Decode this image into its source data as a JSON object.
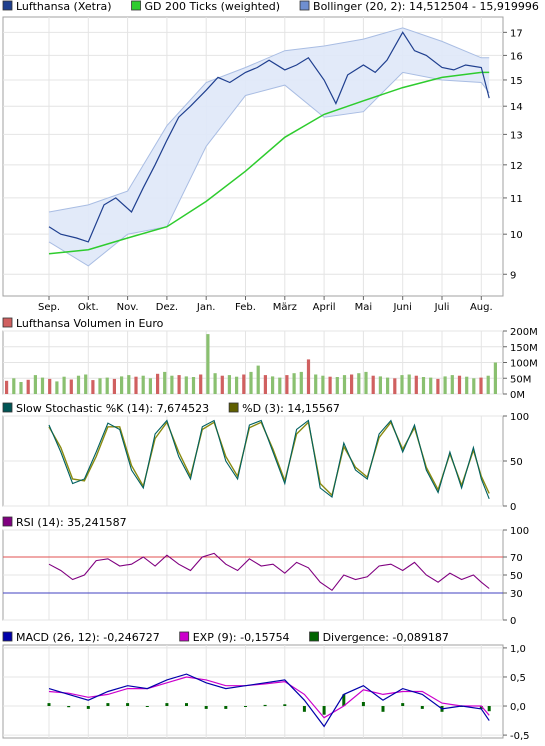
{
  "chart_data": [
    {
      "type": "line",
      "panel": "price",
      "legend": [
        {
          "label": "Lufthansa (Xetra)",
          "color": "#1f3f8f"
        },
        {
          "label": "GD 200 Ticks (weighted)",
          "color": "#2ecc2e"
        },
        {
          "label": "Bollinger (20, 2): 14,512504 - 15,919996",
          "color": "#6f8fd0"
        }
      ],
      "x_months": [
        "Sep.",
        "Okt.",
        "Nov.",
        "Dez.",
        "Jan.",
        "Feb.",
        "März",
        "April",
        "Mai",
        "Juni",
        "Juli",
        "Aug."
      ],
      "y_ticks": [
        "17",
        "16",
        "15",
        "14",
        "13",
        "12",
        "11",
        "10",
        "9"
      ],
      "y_tick_values": [
        17,
        16,
        15,
        14,
        13,
        12,
        11,
        10,
        9
      ],
      "ylim": [
        8.5,
        17.7
      ],
      "log_scale": true,
      "grid": true,
      "series": [
        {
          "name": "Lufthansa (Xetra)",
          "x": [
            0,
            0.3,
            0.7,
            1.0,
            1.4,
            1.7,
            2.1,
            2.4,
            2.7,
            3.0,
            3.3,
            3.6,
            4.0,
            4.3,
            4.6,
            5.0,
            5.3,
            5.6,
            6.0,
            6.3,
            6.6,
            7.0,
            7.3,
            7.6,
            8.0,
            8.3,
            8.6,
            9.0,
            9.3,
            9.6,
            10.0,
            10.3,
            10.6,
            11.0,
            11.2
          ],
          "values": [
            10.2,
            10.0,
            9.9,
            9.8,
            10.8,
            11.0,
            10.6,
            11.3,
            12.0,
            12.8,
            13.6,
            14.0,
            14.6,
            15.1,
            14.9,
            15.3,
            15.5,
            15.8,
            15.4,
            15.6,
            15.9,
            15.0,
            14.1,
            15.2,
            15.6,
            15.3,
            15.8,
            17.0,
            16.2,
            16.0,
            15.5,
            15.4,
            15.6,
            15.5,
            14.3
          ]
        },
        {
          "name": "GD 200 Ticks (weighted)",
          "x": [
            0,
            1,
            2,
            3,
            4,
            5,
            6,
            7,
            8,
            9,
            10,
            11,
            11.2
          ],
          "values": [
            9.5,
            9.6,
            9.9,
            10.2,
            10.9,
            11.8,
            12.9,
            13.7,
            14.2,
            14.7,
            15.1,
            15.3,
            15.3
          ]
        },
        {
          "name": "Bollinger upper",
          "x": [
            0,
            1,
            2,
            3,
            4,
            5,
            6,
            7,
            8,
            9,
            10,
            11,
            11.2
          ],
          "values": [
            10.6,
            10.8,
            11.2,
            13.3,
            14.9,
            15.5,
            16.2,
            16.4,
            16.7,
            17.2,
            16.6,
            15.9,
            15.9
          ]
        },
        {
          "name": "Bollinger lower",
          "x": [
            0,
            1,
            2,
            3,
            4,
            5,
            6,
            7,
            8,
            9,
            10,
            11,
            11.2
          ],
          "values": [
            9.8,
            9.2,
            10.0,
            10.2,
            12.6,
            14.4,
            14.8,
            13.6,
            13.8,
            15.3,
            15.0,
            14.9,
            14.5
          ]
        }
      ]
    },
    {
      "type": "bar",
      "panel": "volume",
      "legend": [
        {
          "label": "Lufthansa Volumen in Euro",
          "color": "#d06060"
        }
      ],
      "y_ticks": [
        "200M",
        "150M",
        "100M",
        "50M",
        "0M"
      ],
      "y_tick_values": [
        200,
        150,
        100,
        50,
        0
      ],
      "ylim": [
        0,
        200
      ],
      "values": [
        42,
        50,
        38,
        45,
        60,
        52,
        48,
        40,
        55,
        46,
        58,
        62,
        44,
        50,
        52,
        48,
        56,
        60,
        55,
        58,
        50,
        64,
        70,
        58,
        60,
        56,
        54,
        62,
        190,
        66,
        58,
        60,
        55,
        62,
        70,
        90,
        60,
        56,
        52,
        60,
        66,
        70,
        110,
        62,
        58,
        55,
        54,
        60,
        62,
        66,
        70,
        58,
        56,
        52,
        50,
        60,
        62,
        58,
        54,
        52,
        48,
        56,
        60,
        58,
        55,
        50,
        52,
        58,
        100
      ]
    },
    {
      "type": "line",
      "panel": "stochastic",
      "legend": [
        {
          "label": "Slow Stochastic %K (14): 7,674523",
          "color": "#005555"
        },
        {
          "label": "%D (3): 14,15567",
          "color": "#606000"
        }
      ],
      "y_ticks": [
        "100",
        "50",
        "0"
      ],
      "y_tick_values": [
        100,
        50,
        0
      ],
      "ylim": [
        0,
        100
      ],
      "series": [
        {
          "name": "%K",
          "x": [
            0,
            0.3,
            0.6,
            0.9,
            1.2,
            1.5,
            1.8,
            2.1,
            2.4,
            2.7,
            3.0,
            3.3,
            3.6,
            3.9,
            4.2,
            4.5,
            4.8,
            5.1,
            5.4,
            5.7,
            6.0,
            6.3,
            6.6,
            6.9,
            7.2,
            7.5,
            7.8,
            8.1,
            8.4,
            8.7,
            9.0,
            9.3,
            9.6,
            9.9,
            10.2,
            10.5,
            10.8,
            11.0,
            11.2
          ],
          "values": [
            90,
            60,
            25,
            30,
            60,
            92,
            85,
            40,
            20,
            80,
            95,
            55,
            30,
            88,
            95,
            50,
            30,
            90,
            95,
            60,
            25,
            85,
            95,
            20,
            10,
            70,
            40,
            30,
            80,
            95,
            60,
            90,
            40,
            15,
            60,
            20,
            65,
            30,
            8
          ]
        },
        {
          "name": "%D",
          "x": [
            0,
            0.3,
            0.6,
            0.9,
            1.2,
            1.5,
            1.8,
            2.1,
            2.4,
            2.7,
            3.0,
            3.3,
            3.6,
            3.9,
            4.2,
            4.5,
            4.8,
            5.1,
            5.4,
            5.7,
            6.0,
            6.3,
            6.6,
            6.9,
            7.2,
            7.5,
            7.8,
            8.1,
            8.4,
            8.7,
            9.0,
            9.3,
            9.6,
            9.9,
            10.2,
            10.5,
            10.8,
            11.0,
            11.2
          ],
          "values": [
            88,
            65,
            30,
            28,
            55,
            88,
            88,
            45,
            22,
            75,
            93,
            60,
            33,
            85,
            93,
            55,
            33,
            87,
            93,
            63,
            28,
            80,
            93,
            25,
            12,
            66,
            43,
            32,
            76,
            93,
            63,
            87,
            43,
            18,
            58,
            23,
            62,
            33,
            14
          ]
        }
      ]
    },
    {
      "type": "line",
      "panel": "rsi",
      "legend": [
        {
          "label": "RSI (14): 35,241587",
          "color": "#800080"
        }
      ],
      "y_ticks": [
        "100",
        "70",
        "50",
        "30",
        "0"
      ],
      "y_tick_values": [
        100,
        70,
        50,
        30,
        0
      ],
      "ylim": [
        0,
        100
      ],
      "ref_lines": [
        {
          "value": 70,
          "color": "#e05050"
        },
        {
          "value": 30,
          "color": "#4040c0"
        }
      ],
      "series": [
        {
          "name": "RSI (14)",
          "x": [
            0,
            0.3,
            0.6,
            0.9,
            1.2,
            1.5,
            1.8,
            2.1,
            2.4,
            2.7,
            3.0,
            3.3,
            3.6,
            3.9,
            4.2,
            4.5,
            4.8,
            5.1,
            5.4,
            5.7,
            6.0,
            6.3,
            6.6,
            6.9,
            7.2,
            7.5,
            7.8,
            8.1,
            8.4,
            8.7,
            9.0,
            9.3,
            9.6,
            9.9,
            10.2,
            10.5,
            10.8,
            11.0,
            11.2
          ],
          "values": [
            62,
            55,
            45,
            50,
            66,
            68,
            60,
            62,
            70,
            60,
            72,
            62,
            55,
            70,
            74,
            62,
            55,
            68,
            60,
            62,
            52,
            64,
            58,
            42,
            33,
            50,
            45,
            48,
            60,
            62,
            55,
            64,
            50,
            42,
            52,
            45,
            50,
            42,
            35
          ]
        }
      ]
    },
    {
      "type": "line",
      "panel": "macd",
      "legend": [
        {
          "label": "MACD (26, 12): -0,246727",
          "color": "#0000aa"
        },
        {
          "label": "EXP (9): -0,15754",
          "color": "#cc00cc"
        },
        {
          "label": "Divergence: -0,089187",
          "color": "#006400"
        }
      ],
      "y_ticks": [
        "1,0",
        "0,5",
        "0,0",
        "-0,5"
      ],
      "y_tick_values": [
        1.0,
        0.5,
        0.0,
        -0.5
      ],
      "ylim": [
        -0.55,
        1.05
      ],
      "series": [
        {
          "name": "MACD (26, 12)",
          "x": [
            0,
            0.5,
            1.0,
            1.5,
            2.0,
            2.5,
            3.0,
            3.5,
            4.0,
            4.5,
            5.0,
            5.5,
            6.0,
            6.5,
            7.0,
            7.5,
            8.0,
            8.5,
            9.0,
            9.5,
            10.0,
            10.5,
            11.0,
            11.2
          ],
          "values": [
            0.3,
            0.2,
            0.1,
            0.25,
            0.35,
            0.3,
            0.45,
            0.55,
            0.4,
            0.3,
            0.35,
            0.4,
            0.45,
            0.1,
            -0.35,
            0.2,
            0.35,
            0.1,
            0.3,
            0.2,
            -0.05,
            0.0,
            -0.05,
            -0.25
          ]
        },
        {
          "name": "EXP (9)",
          "x": [
            0,
            0.5,
            1.0,
            1.5,
            2.0,
            2.5,
            3.0,
            3.5,
            4.0,
            4.5,
            5.0,
            5.5,
            6.0,
            6.5,
            7.0,
            7.5,
            8.0,
            8.5,
            9.0,
            9.5,
            10.0,
            10.5,
            11.0,
            11.2
          ],
          "values": [
            0.25,
            0.22,
            0.15,
            0.2,
            0.3,
            0.3,
            0.4,
            0.5,
            0.45,
            0.35,
            0.35,
            0.38,
            0.42,
            0.2,
            -0.2,
            0.0,
            0.28,
            0.2,
            0.25,
            0.25,
            0.05,
            0.0,
            0.0,
            -0.16
          ]
        },
        {
          "name": "Divergence",
          "x": [
            0,
            0.5,
            1.0,
            1.5,
            2.0,
            2.5,
            3.0,
            3.5,
            4.0,
            4.5,
            5.0,
            5.5,
            6.0,
            6.5,
            7.0,
            7.5,
            8.0,
            8.5,
            9.0,
            9.5,
            10.0,
            10.5,
            11.0,
            11.2
          ],
          "values": [
            0.05,
            -0.02,
            -0.05,
            0.05,
            0.05,
            0.0,
            0.05,
            0.05,
            -0.05,
            -0.05,
            0.0,
            0.02,
            0.03,
            -0.1,
            -0.15,
            0.2,
            0.07,
            -0.1,
            0.05,
            -0.05,
            -0.1,
            0.0,
            -0.05,
            -0.09
          ]
        }
      ]
    }
  ]
}
